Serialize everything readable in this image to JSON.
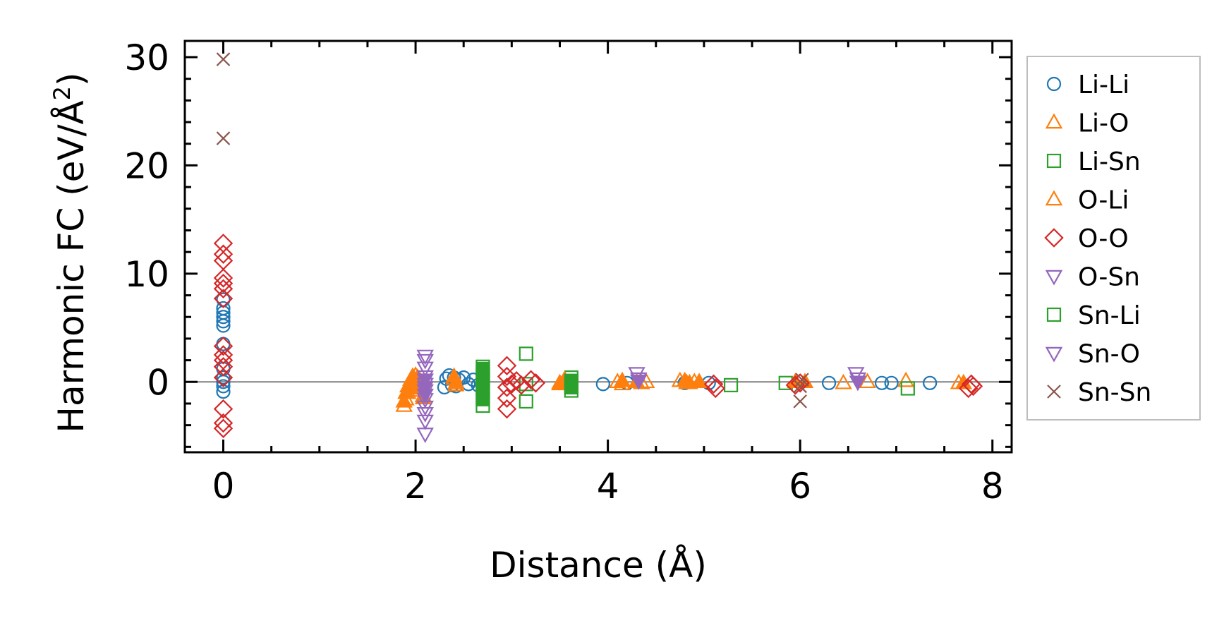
{
  "chart_data": {
    "type": "scatter",
    "xlabel": "Distance (Å)",
    "ylabel_main": "Harmonic FC (eV/Å",
    "ylabel_sup": "2",
    "ylabel_close": ")",
    "xlim": [
      -0.4,
      8.2
    ],
    "ylim": [
      -6.5,
      31.5
    ],
    "xticks": [
      0,
      2,
      4,
      6,
      8
    ],
    "xtick_labels": [
      "0",
      "2",
      "4",
      "6",
      "8"
    ],
    "yticks": [
      0,
      10,
      20,
      30
    ],
    "ytick_labels": [
      "0",
      "10",
      "20",
      "30"
    ],
    "zero_line": 0,
    "grid": false,
    "legend_position": "right, outside",
    "series": [
      {
        "name": "Li-Li",
        "marker": "circle",
        "color": "#1f77b4",
        "filled": false,
        "points": [
          [
            0,
            -0.9
          ],
          [
            0,
            -0.4
          ],
          [
            0,
            0
          ],
          [
            0,
            0.4
          ],
          [
            0,
            1.2
          ],
          [
            0,
            3.5
          ],
          [
            0,
            5.2
          ],
          [
            0,
            5.6
          ],
          [
            0,
            6
          ],
          [
            0,
            6.4
          ],
          [
            0,
            6.8
          ],
          [
            0,
            7.6
          ],
          [
            2.3,
            -0.5
          ],
          [
            2.32,
            0.3
          ],
          [
            2.35,
            0.6
          ],
          [
            2.38,
            -0.3
          ],
          [
            2.4,
            0.4
          ],
          [
            2.42,
            -0.4
          ],
          [
            2.45,
            0.2
          ],
          [
            2.5,
            0.4
          ],
          [
            2.55,
            -0.2
          ],
          [
            2.6,
            0.2
          ],
          [
            2.65,
            -0.3
          ],
          [
            3.95,
            -0.2
          ],
          [
            4.2,
            -0.1
          ],
          [
            4.8,
            -0.1
          ],
          [
            5.05,
            -0.1
          ],
          [
            6.3,
            -0.1
          ],
          [
            6.85,
            -0.1
          ],
          [
            6.95,
            -0.1
          ],
          [
            7.35,
            -0.1
          ]
        ]
      },
      {
        "name": "Li-O",
        "marker": "triangle-up",
        "color": "#ff7f0e",
        "filled": false,
        "points": [
          [
            1.88,
            -2.2
          ],
          [
            1.9,
            -1.6
          ],
          [
            1.92,
            -1.0
          ],
          [
            1.95,
            -0.5
          ],
          [
            1.97,
            0.3
          ],
          [
            2.0,
            0.6
          ],
          [
            2.02,
            -0.8
          ],
          [
            2.05,
            0.1
          ],
          [
            2.08,
            -1.3
          ],
          [
            2.4,
            0.3
          ],
          [
            2.42,
            -0.3
          ],
          [
            3.5,
            -0.2
          ],
          [
            3.55,
            0.1
          ],
          [
            4.1,
            0.0
          ],
          [
            4.15,
            -0.2
          ],
          [
            4.35,
            -0.1
          ],
          [
            4.4,
            0.0
          ],
          [
            4.75,
            0.1
          ],
          [
            4.82,
            -0.1
          ],
          [
            4.9,
            0.0
          ],
          [
            6.45,
            -0.1
          ],
          [
            6.7,
            0.0
          ],
          [
            7.1,
            0.1
          ],
          [
            7.65,
            -0.1
          ]
        ]
      },
      {
        "name": "Li-Sn",
        "marker": "square",
        "color": "#2ca02c",
        "filled": false,
        "points": [
          [
            2.7,
            -2.2
          ],
          [
            2.7,
            -1.6
          ],
          [
            2.7,
            -1.0
          ],
          [
            2.7,
            -0.4
          ],
          [
            2.7,
            0.2
          ],
          [
            2.7,
            0.8
          ],
          [
            2.7,
            1.4
          ],
          [
            3.15,
            2.6
          ],
          [
            3.15,
            -0.2
          ],
          [
            3.15,
            -1.8
          ],
          [
            3.62,
            -0.8
          ],
          [
            3.62,
            -0.2
          ],
          [
            3.62,
            0.4
          ],
          [
            5.28,
            -0.3
          ],
          [
            5.85,
            -0.1
          ],
          [
            7.12,
            -0.6
          ]
        ]
      },
      {
        "name": "O-Li",
        "marker": "triangle-up",
        "color": "#ff7f0e",
        "filled": true,
        "points": [
          [
            1.88,
            -1.8
          ],
          [
            1.9,
            -1.0
          ],
          [
            1.92,
            -0.4
          ],
          [
            1.95,
            0.2
          ],
          [
            1.97,
            0.5
          ],
          [
            2.0,
            -0.2
          ],
          [
            2.02,
            0.4
          ],
          [
            2.05,
            -0.6
          ],
          [
            2.08,
            -1.5
          ],
          [
            2.4,
            0.5
          ],
          [
            2.42,
            -0.1
          ],
          [
            3.5,
            -0.1
          ],
          [
            3.55,
            0.2
          ],
          [
            4.15,
            0.1
          ],
          [
            4.3,
            0.0
          ],
          [
            4.8,
            0.1
          ],
          [
            4.85,
            -0.1
          ],
          [
            4.95,
            0.0
          ],
          [
            5.95,
            0.0
          ],
          [
            6.05,
            0.0
          ],
          [
            7.7,
            -0.1
          ]
        ]
      },
      {
        "name": "O-O",
        "marker": "diamond",
        "color": "#d62728",
        "filled": false,
        "points": [
          [
            0,
            -4.3
          ],
          [
            0,
            -3.8
          ],
          [
            0,
            -2.5
          ],
          [
            0,
            0.4
          ],
          [
            0,
            1.4
          ],
          [
            0,
            2
          ],
          [
            0,
            2.5
          ],
          [
            0,
            3.3
          ],
          [
            0,
            7.7
          ],
          [
            0,
            8.6
          ],
          [
            0,
            9.1
          ],
          [
            0,
            9.6
          ],
          [
            0,
            11.2
          ],
          [
            0,
            11.8
          ],
          [
            0,
            12.8
          ],
          [
            2.95,
            -2.5
          ],
          [
            2.95,
            -1.5
          ],
          [
            2.95,
            -0.5
          ],
          [
            2.95,
            0.5
          ],
          [
            2.95,
            1.5
          ],
          [
            3.0,
            -0.2
          ],
          [
            3.05,
            0.1
          ],
          [
            3.1,
            -0.3
          ],
          [
            3.2,
            0.2
          ],
          [
            3.25,
            -0.1
          ],
          [
            5.1,
            -0.2
          ],
          [
            5.12,
            -0.6
          ],
          [
            5.95,
            -0.3
          ],
          [
            6.0,
            -0.1
          ],
          [
            7.75,
            -0.6
          ],
          [
            7.78,
            -0.2
          ],
          [
            7.8,
            -0.4
          ]
        ]
      },
      {
        "name": "O-Sn",
        "marker": "triangle-down",
        "color": "#9467bd",
        "filled": false,
        "points": [
          [
            2.1,
            -4.8
          ],
          [
            2.1,
            -3.6
          ],
          [
            2.1,
            -2.9
          ],
          [
            2.1,
            -2.3
          ],
          [
            2.1,
            -1.6
          ],
          [
            2.1,
            -0.8
          ],
          [
            2.1,
            -0.2
          ],
          [
            2.1,
            0.5
          ],
          [
            2.1,
            1.3
          ],
          [
            2.1,
            2.0
          ],
          [
            2.1,
            2.4
          ],
          [
            4.3,
            0.8
          ],
          [
            4.32,
            0.3
          ],
          [
            6.58,
            0.8
          ],
          [
            6.6,
            0.3
          ]
        ]
      },
      {
        "name": "Sn-Li",
        "marker": "square",
        "color": "#2ca02c",
        "filled": true,
        "points": [
          [
            2.7,
            -1.5
          ],
          [
            2.7,
            -0.7
          ],
          [
            2.7,
            0.0
          ],
          [
            2.7,
            0.6
          ],
          [
            2.7,
            1.2
          ],
          [
            3.62,
            -0.5
          ],
          [
            3.62,
            0.1
          ]
        ]
      },
      {
        "name": "Sn-O",
        "marker": "triangle-down",
        "color": "#9467bd",
        "filled": true,
        "points": [
          [
            2.1,
            -1.2
          ],
          [
            2.1,
            -0.5
          ],
          [
            2.1,
            0.2
          ],
          [
            4.32,
            0.1
          ],
          [
            6.6,
            0.0
          ]
        ]
      },
      {
        "name": "Sn-Sn",
        "marker": "x",
        "color": "#8c564b",
        "filled": false,
        "points": [
          [
            0,
            29.8
          ],
          [
            0,
            22.5
          ],
          [
            6.0,
            -1.8
          ],
          [
            6.0,
            -0.4
          ],
          [
            6.02,
            0.2
          ]
        ]
      }
    ]
  }
}
